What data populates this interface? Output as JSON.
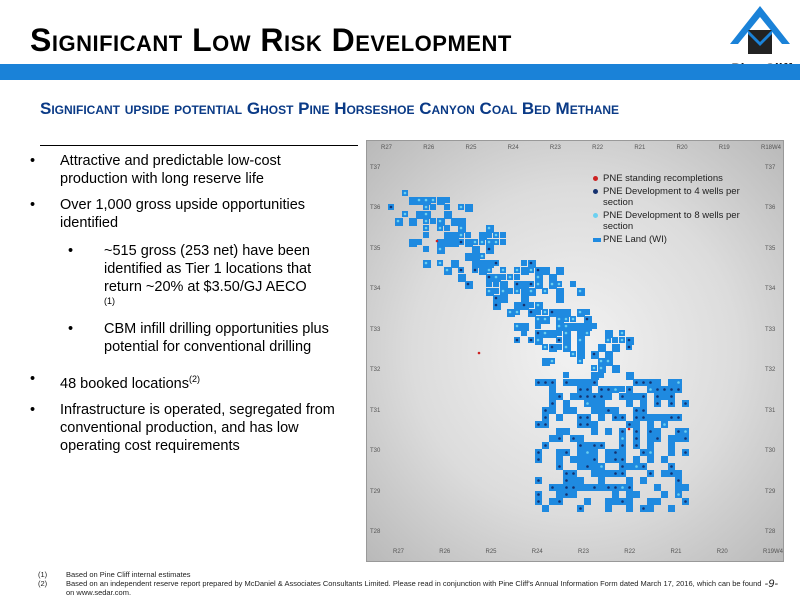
{
  "header": {
    "title": "Significant Low Risk Development",
    "logo_text": "Pine Cliff"
  },
  "subtitle": "Significant upside potential Ghost Pine Horseshoe Canyon Coal Bed Methane",
  "bullets": [
    {
      "text": "Attractive and predictable low-cost production with long reserve life"
    },
    {
      "text": "Over 1,000 gross upside opportunities identified"
    },
    {
      "text": "48 booked locations"
    },
    {
      "text": "Infrastructure is operated, segregated from conventional production, and has low operating cost requirements"
    }
  ],
  "bullet_48_ref": "(2)",
  "sub_bullets": [
    {
      "text": "~515 gross (253 net) have been identified as Tier 1 locations that return ~20% at $3.50/GJ AECO",
      "ref": "(1)"
    },
    {
      "text": "CBM infill drilling opportunities plus potential for conventional drilling"
    }
  ],
  "map": {
    "colors": {
      "recompletion": "#cc2222",
      "dev4": "#14306e",
      "dev8": "#6cd0f0",
      "land": "#1f8ae0"
    },
    "legend": [
      "PNE standing recompletions",
      "PNE Development to 4 wells per section",
      "PNE Development to 8 wells per section",
      "PNE Land (WI)"
    ],
    "range_labels_top": [
      "R27",
      "R26",
      "R25",
      "R24",
      "R23",
      "R22",
      "R21",
      "R20",
      "R19",
      "R18W4"
    ],
    "range_labels_bottom": [
      "R27",
      "R26",
      "R25",
      "R24",
      "R23",
      "R22",
      "R21",
      "R20",
      "R19W4"
    ],
    "township_labels_left": [
      "T37",
      "T36",
      "T35",
      "T34",
      "T33",
      "T32",
      "T31",
      "T30",
      "T29",
      "T28"
    ],
    "township_labels_right": [
      "T37",
      "T36",
      "T35",
      "T34",
      "T33",
      "T32",
      "T31",
      "T30",
      "T29",
      "T28"
    ]
  },
  "footnotes": [
    {
      "num": "(1)",
      "text": "Based on Pine Cliff internal estimates"
    },
    {
      "num": "(2)",
      "text": "Based on an independent reserve report prepared by McDaniel & Associates Consultants Limited. Please read in conjunction with Pine Cliff's Annual Information Form dated March 17, 2016, which can be found on www.sedar.com."
    }
  ],
  "page_number": "-9-"
}
